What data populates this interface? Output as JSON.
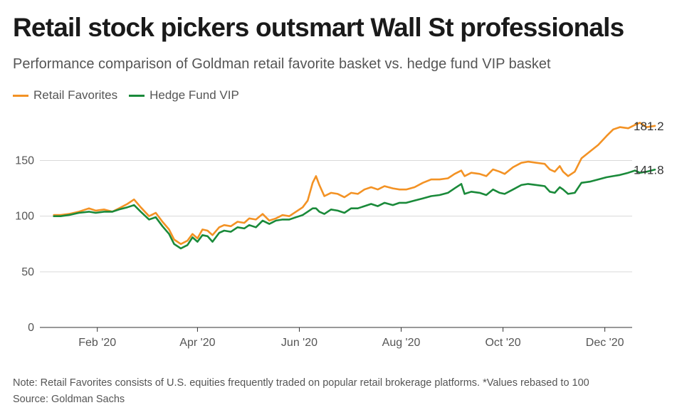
{
  "title": "Retail stock pickers outsmart Wall St professionals",
  "subtitle": "Performance comparison of Goldman retail favorite basket vs. hedge fund VIP basket",
  "note": "Note: Retail Favorites consists of U.S. equities frequently traded on popular retail brokerage platforms. *Values rebased to 100",
  "source": "Source: Goldman Sachs",
  "colors": {
    "retail": "#f39224",
    "hedge": "#1a8a3a",
    "grid": "#d9d9d9",
    "axis": "#333333"
  },
  "chart_data": {
    "type": "line",
    "ylim": [
      0,
      190
    ],
    "yticks": [
      0,
      50,
      100,
      150
    ],
    "xlim": [
      "2020-01-01",
      "2020-12-31"
    ],
    "xtick_labels": [
      {
        "label": "Feb '20",
        "date": "2020-02-01"
      },
      {
        "label": "Apr '20",
        "date": "2020-04-01"
      },
      {
        "label": "Jun '20",
        "date": "2020-06-01"
      },
      {
        "label": "Aug '20",
        "date": "2020-08-01"
      },
      {
        "label": "Oct '20",
        "date": "2020-10-01"
      },
      {
        "label": "Dec '20",
        "date": "2020-12-01"
      }
    ],
    "grid": "horizontal",
    "legend": "top-left",
    "series": [
      {
        "name": "Retail Favorites",
        "end_label": "181.2",
        "points": [
          [
            "2020-01-06",
            101
          ],
          [
            "2020-01-10",
            101
          ],
          [
            "2020-01-15",
            102
          ],
          [
            "2020-01-21",
            104
          ],
          [
            "2020-01-27",
            107
          ],
          [
            "2020-01-31",
            105
          ],
          [
            "2020-02-05",
            106
          ],
          [
            "2020-02-10",
            104
          ],
          [
            "2020-02-14",
            107
          ],
          [
            "2020-02-19",
            111
          ],
          [
            "2020-02-23",
            115
          ],
          [
            "2020-02-27",
            108
          ],
          [
            "2020-03-03",
            100
          ],
          [
            "2020-03-07",
            103
          ],
          [
            "2020-03-11",
            95
          ],
          [
            "2020-03-15",
            88
          ],
          [
            "2020-03-18",
            79
          ],
          [
            "2020-03-22",
            75
          ],
          [
            "2020-03-26",
            78
          ],
          [
            "2020-03-29",
            84
          ],
          [
            "2020-04-01",
            80
          ],
          [
            "2020-04-04",
            88
          ],
          [
            "2020-04-07",
            87
          ],
          [
            "2020-04-10",
            83
          ],
          [
            "2020-04-14",
            90
          ],
          [
            "2020-04-17",
            92
          ],
          [
            "2020-04-21",
            91
          ],
          [
            "2020-04-25",
            95
          ],
          [
            "2020-04-29",
            94
          ],
          [
            "2020-05-02",
            98
          ],
          [
            "2020-05-06",
            97
          ],
          [
            "2020-05-10",
            102
          ],
          [
            "2020-05-14",
            96
          ],
          [
            "2020-05-18",
            98
          ],
          [
            "2020-05-22",
            101
          ],
          [
            "2020-05-26",
            100
          ],
          [
            "2020-05-30",
            104
          ],
          [
            "2020-06-03",
            108
          ],
          [
            "2020-06-06",
            114
          ],
          [
            "2020-06-09",
            130
          ],
          [
            "2020-06-11",
            136
          ],
          [
            "2020-06-13",
            128
          ],
          [
            "2020-06-16",
            118
          ],
          [
            "2020-06-20",
            121
          ],
          [
            "2020-06-24",
            120
          ],
          [
            "2020-06-28",
            117
          ],
          [
            "2020-07-02",
            121
          ],
          [
            "2020-07-06",
            120
          ],
          [
            "2020-07-10",
            124
          ],
          [
            "2020-07-14",
            126
          ],
          [
            "2020-07-18",
            124
          ],
          [
            "2020-07-22",
            127
          ],
          [
            "2020-07-27",
            125
          ],
          [
            "2020-07-31",
            124
          ],
          [
            "2020-08-04",
            124
          ],
          [
            "2020-08-09",
            126
          ],
          [
            "2020-08-14",
            130
          ],
          [
            "2020-08-19",
            133
          ],
          [
            "2020-08-24",
            133
          ],
          [
            "2020-08-29",
            134
          ],
          [
            "2020-09-02",
            138
          ],
          [
            "2020-09-06",
            141
          ],
          [
            "2020-09-08",
            136
          ],
          [
            "2020-09-12",
            139
          ],
          [
            "2020-09-17",
            138
          ],
          [
            "2020-09-21",
            136
          ],
          [
            "2020-09-25",
            142
          ],
          [
            "2020-09-29",
            140
          ],
          [
            "2020-10-02",
            138
          ],
          [
            "2020-10-07",
            144
          ],
          [
            "2020-10-12",
            148
          ],
          [
            "2020-10-16",
            149
          ],
          [
            "2020-10-21",
            148
          ],
          [
            "2020-10-26",
            147
          ],
          [
            "2020-10-29",
            142
          ],
          [
            "2020-11-01",
            140
          ],
          [
            "2020-11-04",
            145
          ],
          [
            "2020-11-06",
            140
          ],
          [
            "2020-11-09",
            136
          ],
          [
            "2020-11-13",
            140
          ],
          [
            "2020-11-17",
            152
          ],
          [
            "2020-11-22",
            158
          ],
          [
            "2020-11-27",
            164
          ],
          [
            "2020-12-02",
            172
          ],
          [
            "2020-12-06",
            178
          ],
          [
            "2020-12-10",
            180
          ],
          [
            "2020-12-15",
            179
          ],
          [
            "2020-12-19",
            182
          ],
          [
            "2020-12-22",
            184
          ],
          [
            "2020-12-26",
            180
          ],
          [
            "2020-12-31",
            181.2
          ]
        ]
      },
      {
        "name": "Hedge Fund VIP",
        "end_label": "141.8",
        "points": [
          [
            "2020-01-06",
            100
          ],
          [
            "2020-01-10",
            100
          ],
          [
            "2020-01-15",
            101
          ],
          [
            "2020-01-21",
            103
          ],
          [
            "2020-01-27",
            104
          ],
          [
            "2020-01-31",
            103
          ],
          [
            "2020-02-05",
            104
          ],
          [
            "2020-02-10",
            104
          ],
          [
            "2020-02-14",
            106
          ],
          [
            "2020-02-19",
            108
          ],
          [
            "2020-02-23",
            110
          ],
          [
            "2020-02-27",
            104
          ],
          [
            "2020-03-03",
            97
          ],
          [
            "2020-03-07",
            99
          ],
          [
            "2020-03-11",
            91
          ],
          [
            "2020-03-15",
            84
          ],
          [
            "2020-03-18",
            75
          ],
          [
            "2020-03-22",
            71
          ],
          [
            "2020-03-26",
            74
          ],
          [
            "2020-03-29",
            81
          ],
          [
            "2020-04-01",
            77
          ],
          [
            "2020-04-04",
            83
          ],
          [
            "2020-04-07",
            82
          ],
          [
            "2020-04-10",
            77
          ],
          [
            "2020-04-14",
            85
          ],
          [
            "2020-04-17",
            87
          ],
          [
            "2020-04-21",
            86
          ],
          [
            "2020-04-25",
            90
          ],
          [
            "2020-04-29",
            89
          ],
          [
            "2020-05-02",
            92
          ],
          [
            "2020-05-06",
            90
          ],
          [
            "2020-05-10",
            96
          ],
          [
            "2020-05-14",
            93
          ],
          [
            "2020-05-18",
            96
          ],
          [
            "2020-05-22",
            97
          ],
          [
            "2020-05-26",
            97
          ],
          [
            "2020-05-30",
            99
          ],
          [
            "2020-06-03",
            101
          ],
          [
            "2020-06-06",
            104
          ],
          [
            "2020-06-09",
            107
          ],
          [
            "2020-06-11",
            107
          ],
          [
            "2020-06-13",
            104
          ],
          [
            "2020-06-16",
            102
          ],
          [
            "2020-06-20",
            106
          ],
          [
            "2020-06-24",
            105
          ],
          [
            "2020-06-28",
            103
          ],
          [
            "2020-07-02",
            107
          ],
          [
            "2020-07-06",
            107
          ],
          [
            "2020-07-10",
            109
          ],
          [
            "2020-07-14",
            111
          ],
          [
            "2020-07-18",
            109
          ],
          [
            "2020-07-22",
            112
          ],
          [
            "2020-07-27",
            110
          ],
          [
            "2020-07-31",
            112
          ],
          [
            "2020-08-04",
            112
          ],
          [
            "2020-08-09",
            114
          ],
          [
            "2020-08-14",
            116
          ],
          [
            "2020-08-19",
            118
          ],
          [
            "2020-08-24",
            119
          ],
          [
            "2020-08-29",
            121
          ],
          [
            "2020-09-02",
            125
          ],
          [
            "2020-09-06",
            129
          ],
          [
            "2020-09-08",
            120
          ],
          [
            "2020-09-12",
            122
          ],
          [
            "2020-09-17",
            121
          ],
          [
            "2020-09-21",
            119
          ],
          [
            "2020-09-25",
            124
          ],
          [
            "2020-09-29",
            121
          ],
          [
            "2020-10-02",
            120
          ],
          [
            "2020-10-07",
            124
          ],
          [
            "2020-10-12",
            128
          ],
          [
            "2020-10-16",
            129
          ],
          [
            "2020-10-21",
            128
          ],
          [
            "2020-10-26",
            127
          ],
          [
            "2020-10-29",
            122
          ],
          [
            "2020-11-01",
            121
          ],
          [
            "2020-11-04",
            126
          ],
          [
            "2020-11-06",
            124
          ],
          [
            "2020-11-09",
            120
          ],
          [
            "2020-11-13",
            121
          ],
          [
            "2020-11-17",
            130
          ],
          [
            "2020-11-22",
            131
          ],
          [
            "2020-11-27",
            133
          ],
          [
            "2020-12-02",
            135
          ],
          [
            "2020-12-06",
            136
          ],
          [
            "2020-12-10",
            137
          ],
          [
            "2020-12-15",
            139
          ],
          [
            "2020-12-19",
            141
          ],
          [
            "2020-12-22",
            139
          ],
          [
            "2020-12-26",
            140
          ],
          [
            "2020-12-31",
            141.8
          ]
        ]
      }
    ]
  }
}
